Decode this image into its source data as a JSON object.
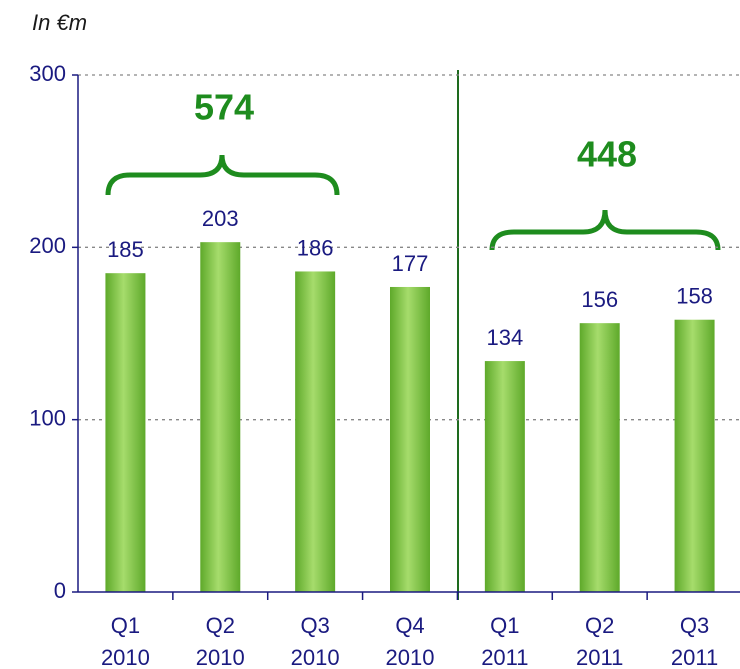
{
  "chart_data": {
    "type": "bar",
    "unit_label": "In €m",
    "categories": [
      [
        "Q1",
        "2010"
      ],
      [
        "Q2",
        "2010"
      ],
      [
        "Q3",
        "2010"
      ],
      [
        "Q4",
        "2010"
      ],
      [
        "Q1",
        "2011"
      ],
      [
        "Q2",
        "2011"
      ],
      [
        "Q3",
        "2011"
      ]
    ],
    "values": [
      185,
      203,
      186,
      177,
      134,
      156,
      158
    ],
    "color": "#7cc242",
    "ylim": [
      0,
      300
    ],
    "yticks": [
      0,
      100,
      200,
      300
    ],
    "grid": true,
    "annotations": [
      {
        "text": "574"
      },
      {
        "text": "448"
      }
    ]
  }
}
